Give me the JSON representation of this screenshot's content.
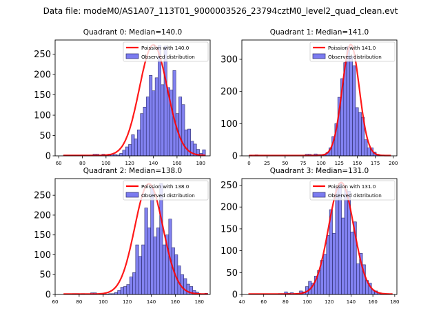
{
  "suptitle": "Data file: modeM0/AS1A07_113T01_9000003526_23794cztM0_level2_quad_clean.evt",
  "colors": {
    "bar_fill": "#7b7bf0",
    "bar_edge": "#2a2a6a",
    "curve": "#ff0000"
  },
  "chart_data": [
    {
      "type": "bar",
      "title": "Quadrant 0: Median=140.0",
      "legend": [
        "Poission with 140.0",
        "Observed distribution"
      ],
      "legend_position": "top-right",
      "xlim": [
        57,
        188
      ],
      "ylim": [
        0,
        285
      ],
      "xticks": [
        60,
        80,
        100,
        120,
        140,
        160,
        180
      ],
      "yticks": [
        0,
        50,
        100,
        150,
        200,
        250
      ],
      "bin_start": 64,
      "bin_width": 2.5,
      "values": [
        1,
        1,
        1,
        1,
        1,
        1,
        1,
        1,
        1,
        2,
        4,
        4,
        2,
        4,
        2,
        4,
        4,
        3,
        2,
        6,
        14,
        22,
        28,
        52,
        42,
        64,
        104,
        120,
        145,
        198,
        160,
        192,
        272,
        175,
        270,
        168,
        162,
        210,
        104,
        145,
        126,
        64,
        66,
        36,
        29,
        16,
        6,
        15
      ],
      "poisson_mean": 140.0,
      "poisson_peak": 272
    },
    {
      "type": "bar",
      "title": "Quadrant 1: Median=141.0",
      "legend": [
        "Poission with 141.0",
        "Observed distribution"
      ],
      "legend_position": "top-right",
      "xlim": [
        -10,
        205
      ],
      "ylim": [
        0,
        360
      ],
      "xticks": [
        0,
        25,
        50,
        75,
        100,
        125,
        150,
        175,
        200
      ],
      "yticks": [
        0,
        100,
        200,
        300
      ],
      "bin_start": 0,
      "bin_width": 4.1,
      "values": [
        2,
        0,
        3,
        0,
        0,
        0,
        0,
        0,
        0,
        0,
        0,
        0,
        0,
        0,
        0,
        0,
        0,
        0,
        0,
        5,
        5,
        3,
        6,
        4,
        4,
        5,
        10,
        25,
        60,
        100,
        182,
        240,
        290,
        340,
        310,
        280,
        150,
        135,
        120,
        50,
        25,
        25,
        12,
        5,
        2,
        1,
        0,
        0
      ],
      "poisson_mean": 141.0,
      "poisson_peak": 345
    },
    {
      "type": "bar",
      "title": "Quadrant 2: Median=138.0",
      "legend": [
        "Poission with 138.0",
        "Observed distribution"
      ],
      "legend_position": "top-right",
      "xlim": [
        60,
        189
      ],
      "ylim": [
        0,
        292
      ],
      "xticks": [
        60,
        80,
        100,
        120,
        140,
        160,
        180
      ],
      "yticks": [
        0,
        50,
        100,
        150,
        200,
        250
      ],
      "bin_start": 67,
      "bin_width": 2.5,
      "values": [
        0,
        0,
        0,
        2,
        2,
        0,
        2,
        0,
        0,
        4,
        4,
        0,
        1,
        1,
        1,
        2,
        2,
        5,
        10,
        18,
        20,
        25,
        44,
        55,
        125,
        96,
        125,
        218,
        168,
        270,
        145,
        168,
        280,
        125,
        150,
        190,
        118,
        100,
        72,
        50,
        40,
        26,
        20,
        10,
        6,
        2,
        2,
        3
      ],
      "poisson_mean": 138.0,
      "poisson_peak": 278
    },
    {
      "type": "bar",
      "title": "Quadrant 3: Median=131.0",
      "legend": [
        "Poission with 131.0",
        "Observed distribution"
      ],
      "legend_position": "top-right",
      "xlim": [
        40,
        182
      ],
      "ylim": [
        0,
        265
      ],
      "xticks": [
        40,
        60,
        80,
        100,
        120,
        140,
        160,
        180
      ],
      "yticks": [
        0,
        50,
        100,
        150,
        200,
        250
      ],
      "bin_start": 46,
      "bin_width": 2.75,
      "values": [
        0,
        0,
        0,
        0,
        0,
        0,
        0,
        0,
        0,
        0,
        2,
        2,
        6,
        3,
        4,
        2,
        2,
        8,
        6,
        18,
        30,
        26,
        42,
        55,
        78,
        92,
        135,
        194,
        140,
        245,
        255,
        175,
        240,
        236,
        143,
        166,
        70,
        94,
        68,
        32,
        26,
        10,
        8,
        3,
        1,
        1,
        1,
        0
      ],
      "poisson_mean": 131.0,
      "poisson_peak": 255
    }
  ]
}
